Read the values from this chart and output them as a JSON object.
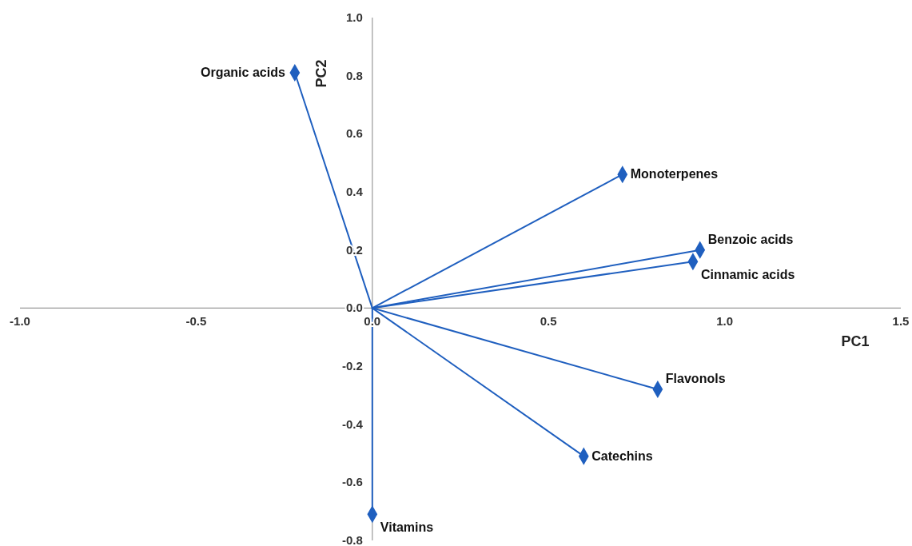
{
  "chart_data": {
    "type": "scatter",
    "xlabel": "PC1",
    "ylabel": "PC2",
    "xlim": [
      -1.0,
      1.5
    ],
    "ylim": [
      -0.8,
      1.0
    ],
    "xticks": [
      {
        "value": -1,
        "label": "-1.0"
      },
      {
        "value": -0.5,
        "label": "-0.5"
      },
      {
        "value": 0,
        "label": "0.0"
      },
      {
        "value": 0.5,
        "label": "0.5"
      },
      {
        "value": 1,
        "label": "1.0"
      },
      {
        "value": 1.5,
        "label": "1.5"
      }
    ],
    "yticks": [
      {
        "value": 1,
        "label": "1.0"
      },
      {
        "value": 0.8,
        "label": "0.8"
      },
      {
        "value": 0.6,
        "label": "0.6"
      },
      {
        "value": 0.4,
        "label": "0.4"
      },
      {
        "value": 0.2,
        "label": "0.2"
      },
      {
        "value": 0,
        "label": "0.0"
      },
      {
        "value": -0.2,
        "label": "-0.2"
      },
      {
        "value": -0.4,
        "label": "-0.4"
      },
      {
        "value": -0.6,
        "label": "-0.6"
      },
      {
        "value": -0.8,
        "label": "-0.8"
      }
    ],
    "grid": false,
    "series": [
      {
        "color": "#1f5fbf",
        "marker": "diamond",
        "line_style": "solid",
        "x": [
          -0.22,
          0.71,
          0.93,
          0.91,
          0.81,
          0.6,
          0.0
        ],
        "values": [
          0.81,
          0.46,
          0.2,
          0.16,
          -0.28,
          -0.51,
          -0.71
        ]
      }
    ],
    "annotations": [
      {
        "text": "Organic acids",
        "x": -0.22,
        "y": 0.81
      },
      {
        "text": "Monoterpenes",
        "x": 0.71,
        "y": 0.46
      },
      {
        "text": "Benzoic acids",
        "x": 0.93,
        "y": 0.2
      },
      {
        "text": "Cinnamic acids",
        "x": 0.91,
        "y": 0.16
      },
      {
        "text": "Flavonols",
        "x": 0.81,
        "y": -0.28
      },
      {
        "text": "Catechins",
        "x": 0.6,
        "y": -0.51
      },
      {
        "text": "Vitamins",
        "x": 0.0,
        "y": -0.71
      }
    ]
  }
}
